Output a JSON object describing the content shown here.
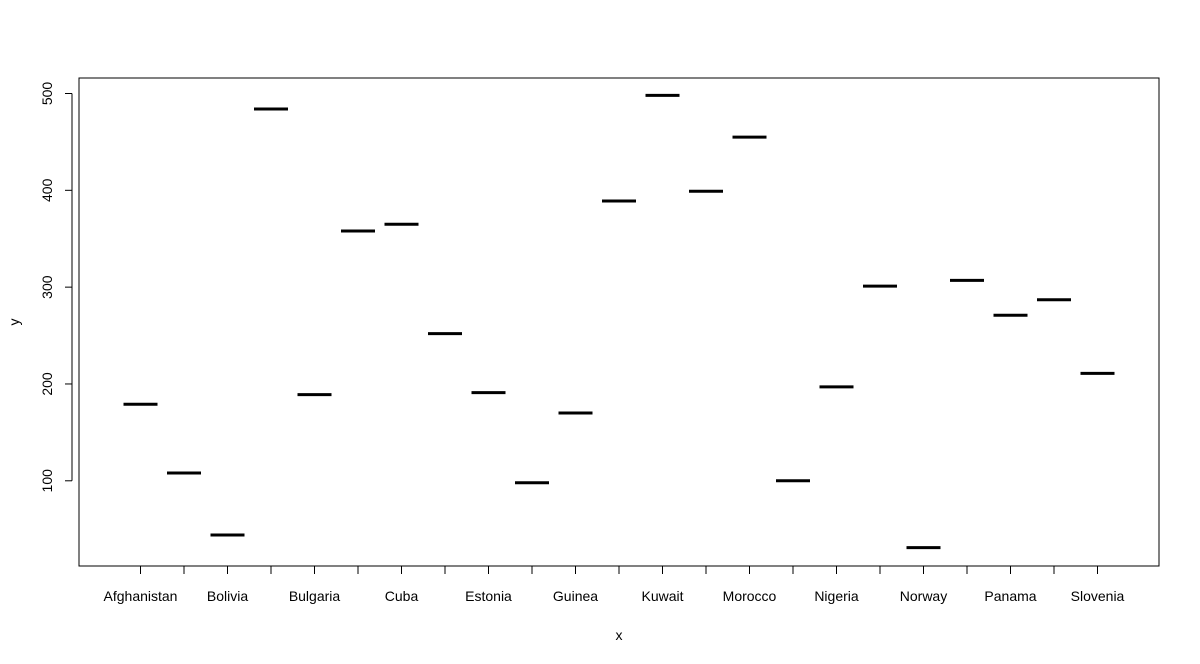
{
  "chart_data": {
    "type": "bar",
    "categories": [
      "Afghanistan",
      "",
      "Bolivia",
      "",
      "Bulgaria",
      "",
      "Cuba",
      "",
      "Estonia",
      "",
      "Guinea",
      "",
      "Kuwait",
      "",
      "Morocco",
      "",
      "Nigeria",
      "",
      "Norway",
      "",
      "Panama",
      "",
      "Slovenia"
    ],
    "category_tick_labels": [
      "Afghanistan",
      "Bolivia",
      "Bulgaria",
      "Cuba",
      "Estonia",
      "Guinea",
      "Kuwait",
      "Morocco",
      "Nigeria",
      "Norway",
      "Panama",
      "Slovenia"
    ],
    "values": [
      179,
      108,
      44,
      484,
      189,
      358,
      365,
      252,
      191,
      98,
      170,
      389,
      498,
      399,
      455,
      100,
      197,
      301,
      31,
      307,
      271,
      287,
      211
    ],
    "xlabel": "x",
    "ylabel": "y",
    "ylim": [
      12,
      516
    ],
    "yticks": [
      100,
      200,
      300,
      400,
      500
    ],
    "grid": false,
    "style": "horizontal median segments (boxplot-style)"
  }
}
